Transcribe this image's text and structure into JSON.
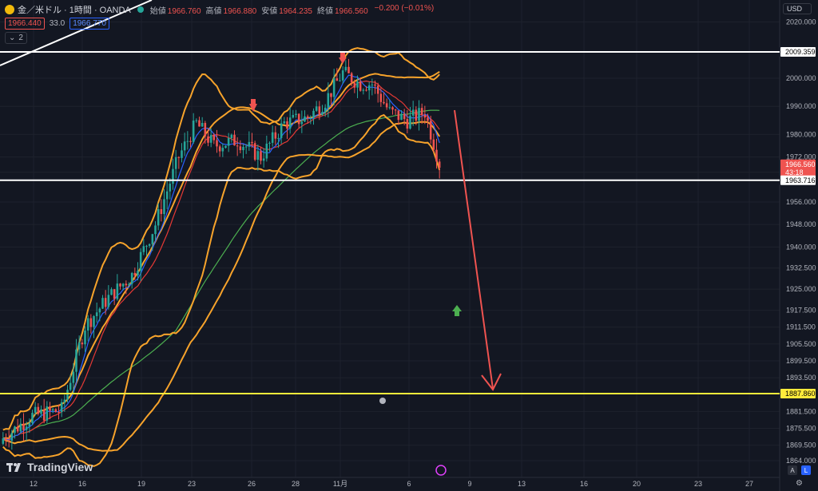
{
  "header": {
    "symbol": "金／米ドル · 1時間 · OANDA",
    "ohlc": [
      {
        "label": "始値",
        "value": "1966.760"
      },
      {
        "label": "高値",
        "value": "1966.880"
      },
      {
        "label": "安値",
        "value": "1964.235"
      },
      {
        "label": "終値",
        "value": "1966.560"
      },
      {
        "label": "",
        "value": "−0.200 (−0.01%)"
      }
    ],
    "bid": "1966.440",
    "spread": "33.0",
    "ask": "1966.770",
    "indicator_count": "2"
  },
  "currency": "USD",
  "brand": "TradingView",
  "scale_buttons": {
    "auto": "A",
    "log": "L"
  },
  "chart_data": {
    "type": "candlestick",
    "y_axis": {
      "range": [
        1862,
        2023
      ],
      "ticks": [
        "2020.000",
        "2009.359",
        "2000.000",
        "1990.000",
        "1980.000",
        "1972.000",
        "1966.560",
        "1963.716",
        "1956.000",
        "1948.000",
        "1940.000",
        "1932.500",
        "1925.000",
        "1917.500",
        "1911.500",
        "1905.500",
        "1899.500",
        "1893.500",
        "1887.860",
        "1881.500",
        "1875.500",
        "1869.500",
        "1864.000"
      ],
      "side": "right"
    },
    "x_axis": {
      "ticks": [
        "12",
        "16",
        "19",
        "23",
        "26",
        "28",
        "11月",
        "6",
        "9",
        "13",
        "16",
        "20",
        "23",
        "27"
      ]
    },
    "price_labels": [
      {
        "value": "2009.359",
        "color": "#ffffff",
        "text_color": "#000000"
      },
      {
        "value": "1966.560",
        "sub": "43:18",
        "color": "#ef5350",
        "text_color": "#ffffff"
      },
      {
        "value": "1963.716",
        "color": "#ffffff",
        "text_color": "#000000"
      },
      {
        "value": "1887.860",
        "color": "#ffeb3b",
        "text_color": "#000000"
      }
    ],
    "horizontal_lines": [
      {
        "y": 2009.359,
        "color": "#ffffff"
      },
      {
        "y": 1963.716,
        "color": "#ffffff"
      },
      {
        "y": 1887.86,
        "color": "#ffeb3b"
      }
    ],
    "series": [
      {
        "kind": "bollinger",
        "color": "#f7a32b"
      },
      {
        "kind": "ma-blue",
        "color": "#2962ff"
      },
      {
        "kind": "ma-red",
        "color": "#e53935"
      },
      {
        "kind": "ma-green",
        "color": "#4caf50"
      }
    ],
    "annotations": [
      {
        "kind": "arrow-down-marker",
        "color": "#ef5350"
      },
      {
        "kind": "arrow-up-marker",
        "color": "#4caf50"
      },
      {
        "kind": "trend-arrow",
        "color": "#ef5350"
      }
    ],
    "colors": {
      "up": "#26a69a",
      "down": "#ef5350",
      "background": "#131722",
      "grid": "#1e222d"
    }
  }
}
